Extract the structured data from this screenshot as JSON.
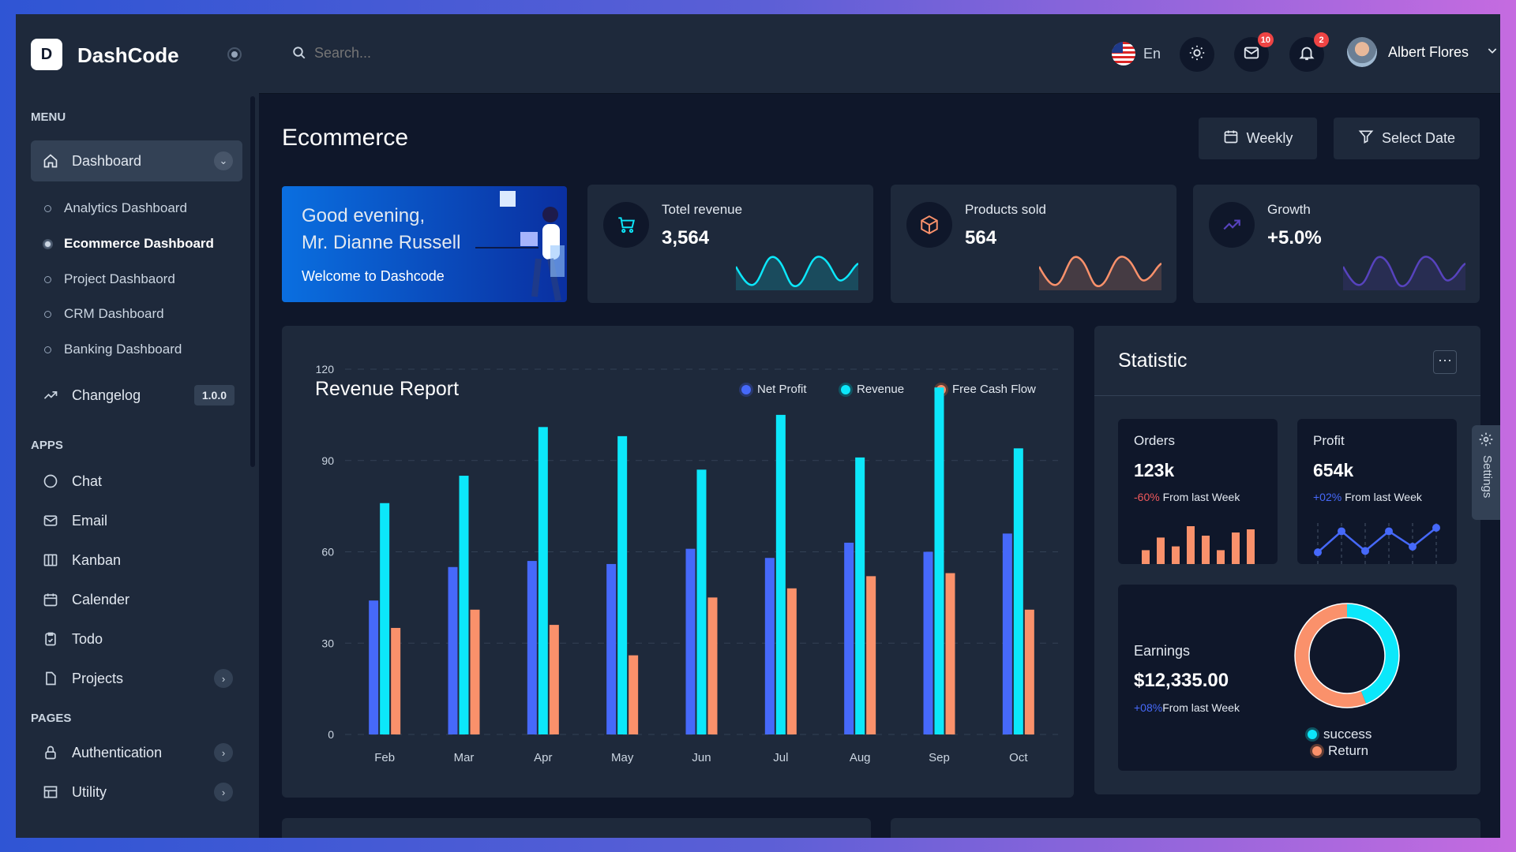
{
  "brand": {
    "name": "DashCode",
    "logo_text": "D"
  },
  "header": {
    "search_placeholder": "Search...",
    "language": "En",
    "mail_count": "10",
    "notification_count": "2",
    "user_name": "Albert Flores"
  },
  "sidebar": {
    "menu_label": "MENU",
    "dashboard_label": "Dashboard",
    "dashboard_items": [
      {
        "label": "Analytics Dashboard"
      },
      {
        "label": "Ecommerce Dashboard",
        "active": true
      },
      {
        "label": "Project Dashbaord"
      },
      {
        "label": "CRM Dashboard"
      },
      {
        "label": "Banking Dashboard"
      }
    ],
    "changelog_label": "Changelog",
    "changelog_version": "1.0.0",
    "apps_label": "APPS",
    "apps": [
      {
        "label": "Chat",
        "icon": "chat-icon"
      },
      {
        "label": "Email",
        "icon": "mail-icon"
      },
      {
        "label": "Kanban",
        "icon": "kanban-icon"
      },
      {
        "label": "Calender",
        "icon": "calendar-icon"
      },
      {
        "label": "Todo",
        "icon": "clipboard-icon"
      },
      {
        "label": "Projects",
        "icon": "file-icon"
      }
    ],
    "pages_label": "PAGES",
    "pages": [
      {
        "label": "Authentication",
        "icon": "lock-icon"
      },
      {
        "label": "Utility",
        "icon": "grid-icon"
      }
    ]
  },
  "page": {
    "title": "Ecommerce",
    "weekly_label": "Weekly",
    "select_date_label": "Select Date"
  },
  "welcome": {
    "greeting": "Good evening,",
    "name": "Mr. Dianne Russell",
    "subtitle": "Welcome to Dashcode"
  },
  "stats": [
    {
      "label": "Totel revenue",
      "value": "3,564",
      "color": "#00ebff"
    },
    {
      "label": "Products sold",
      "value": "564",
      "color": "#fb8f65"
    },
    {
      "label": "Growth",
      "value": "+5.0%",
      "color": "#5743be"
    }
  ],
  "chart_data": {
    "type": "bar",
    "title": "Revenue Report",
    "categories": [
      "Feb",
      "Mar",
      "Apr",
      "May",
      "Jun",
      "Jul",
      "Aug",
      "Sep",
      "Oct"
    ],
    "ylim": [
      0,
      120
    ],
    "yticks": [
      "0",
      "30",
      "60",
      "90",
      "120"
    ],
    "grid": true,
    "legend": "top-right",
    "series": [
      {
        "name": "Net Profit",
        "color": "#4669fa",
        "values": [
          44,
          55,
          57,
          56,
          61,
          58,
          63,
          60,
          66
        ]
      },
      {
        "name": "Revenue",
        "color": "#0ce7fa",
        "values": [
          76,
          85,
          101,
          98,
          87,
          105,
          91,
          114,
          94
        ]
      },
      {
        "name": "Free Cash Flow",
        "color": "#fa916b",
        "values": [
          35,
          41,
          36,
          26,
          45,
          48,
          52,
          53,
          41
        ]
      }
    ]
  },
  "statistic": {
    "title": "Statistic",
    "orders": {
      "label": "Orders",
      "value": "123k",
      "change": "-60%",
      "change_text": "From last Week",
      "bars": [
        22,
        42,
        28,
        60,
        45,
        22,
        50,
        55
      ]
    },
    "profit": {
      "label": "Profit",
      "value": "654k",
      "change": "+02%",
      "change_text": "From last Week",
      "points": [
        10,
        40,
        12,
        40,
        18,
        45
      ]
    },
    "earnings": {
      "label": "Earnings",
      "value": "$12,335.00",
      "change": "+08%",
      "change_text": "From last Week",
      "donut": [
        {
          "name": "success",
          "value": 44,
          "color": "#0ce7fa"
        },
        {
          "name": "Return",
          "value": 56,
          "color": "#fa916b"
        }
      ]
    }
  },
  "settings_tab": "Settings"
}
